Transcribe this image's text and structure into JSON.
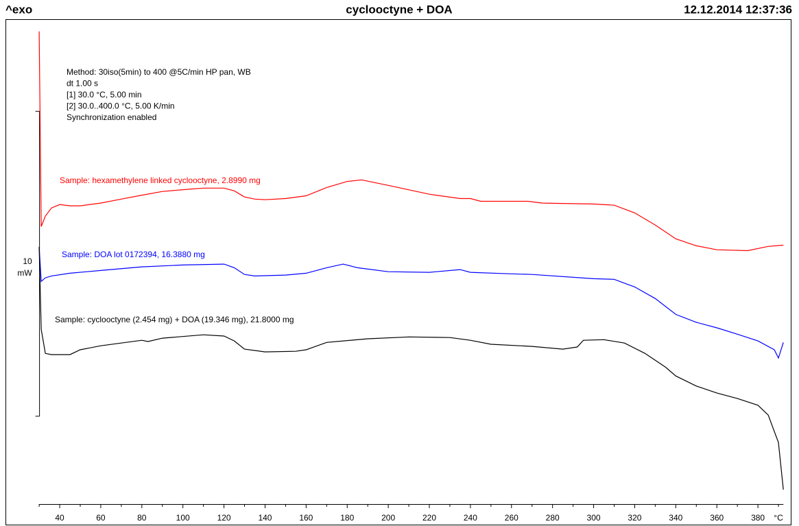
{
  "header": {
    "left": "^exo",
    "title": "cyclooctyne + DOA",
    "right": "12.12.2014 12:37:36"
  },
  "chart_data": {
    "type": "line",
    "xlabel": "°C",
    "xlim": [
      13.6,
      396
    ],
    "ylim": [
      0,
      15.9
    ],
    "xticks": [
      40,
      60,
      80,
      100,
      120,
      140,
      160,
      180,
      200,
      220,
      240,
      260,
      280,
      300,
      320,
      340,
      360,
      380
    ],
    "xminorticks": [
      30,
      50,
      70,
      90,
      110,
      130,
      150,
      170,
      190,
      210,
      230,
      250,
      270,
      290,
      310,
      330,
      350,
      370,
      390
    ],
    "scale_bar": {
      "value": 10,
      "unit": "mW",
      "start": 2.88
    },
    "annotations": [
      "Method: 30iso(5min) to 400 @5C/min  HP pan, WB",
      "dt 1.00 s",
      "[1] 30.0 °C, 5.00 min",
      "[2] 30.0..400.0 °C, 5.00 K/min",
      "Synchronization enabled"
    ],
    "series": [
      {
        "name": "Sample: hexamethylene linked cyclooctyne, 2.8990 mg",
        "color": "#ff0000",
        "x": [
          30,
          31,
          33,
          36,
          40,
          45,
          50,
          60,
          70,
          80,
          90,
          100,
          110,
          120,
          125,
          130,
          135,
          140,
          150,
          160,
          170,
          180,
          187,
          200,
          220,
          235,
          240,
          245,
          260,
          268,
          275,
          300,
          310,
          320,
          330,
          340,
          350,
          360,
          375,
          385,
          392.4
        ],
        "values": [
          15.5,
          9.1,
          9.44,
          9.71,
          9.82,
          9.78,
          9.78,
          9.87,
          10.0,
          10.13,
          10.25,
          10.31,
          10.36,
          10.36,
          10.27,
          10.07,
          10.0,
          9.98,
          10.02,
          10.11,
          10.38,
          10.58,
          10.63,
          10.45,
          10.16,
          10.02,
          10.02,
          9.93,
          9.93,
          9.93,
          9.87,
          9.84,
          9.8,
          9.55,
          9.15,
          8.7,
          8.47,
          8.34,
          8.31,
          8.45,
          8.49
        ]
      },
      {
        "name": "Sample: DOA lot 0172394, 16.3880 mg",
        "color": "#0000ff",
        "x": [
          30,
          31,
          33,
          36,
          45,
          60,
          80,
          100,
          120,
          125,
          130,
          135,
          150,
          160,
          170,
          178,
          185,
          200,
          220,
          235,
          240,
          260,
          270,
          300,
          310,
          320,
          330,
          340,
          350,
          360,
          370,
          380,
          388,
          390,
          392.4
        ],
        "values": [
          8.43,
          7.3,
          7.42,
          7.48,
          7.57,
          7.66,
          7.78,
          7.84,
          7.87,
          7.75,
          7.53,
          7.48,
          7.51,
          7.57,
          7.75,
          7.87,
          7.75,
          7.62,
          7.6,
          7.69,
          7.6,
          7.55,
          7.53,
          7.39,
          7.37,
          7.12,
          6.74,
          6.22,
          5.96,
          5.78,
          5.57,
          5.35,
          5.06,
          4.79,
          5.3
        ]
      },
      {
        "name": "Sample: cyclooctyne (2.454 mg) + DOA (19.346 mg), 21.8000 mg",
        "color": "#000000",
        "x": [
          30,
          31,
          33,
          36,
          45,
          50,
          60,
          80,
          83,
          90,
          110,
          120,
          125,
          130,
          140,
          155,
          160,
          170,
          190,
          210,
          230,
          240,
          250,
          270,
          285,
          292,
          295,
          305,
          315,
          325,
          335,
          340,
          350,
          360,
          370,
          380,
          385,
          390,
          392.4
        ],
        "values": [
          8.43,
          5.73,
          4.94,
          4.9,
          4.9,
          5.06,
          5.19,
          5.37,
          5.33,
          5.44,
          5.55,
          5.51,
          5.35,
          5.08,
          4.99,
          5.01,
          5.06,
          5.3,
          5.42,
          5.48,
          5.46,
          5.37,
          5.24,
          5.17,
          5.08,
          5.15,
          5.37,
          5.39,
          5.28,
          4.94,
          4.49,
          4.2,
          3.87,
          3.64,
          3.46,
          3.24,
          2.92,
          2.02,
          0.47
        ]
      }
    ]
  }
}
